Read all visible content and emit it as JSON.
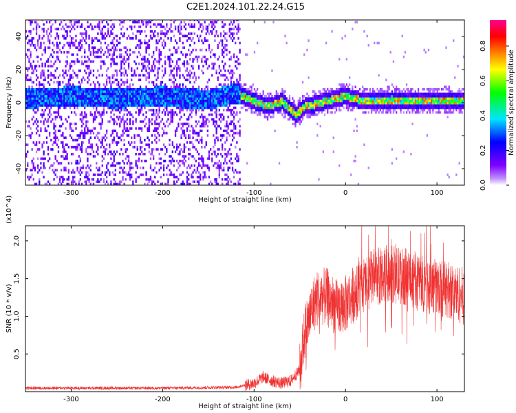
{
  "title": "C2E1.2024.101.22.24.G15",
  "chart_data": [
    {
      "type": "heatmap",
      "xlabel": "Height of straight line (km)",
      "ylabel": "Frequency (Hz)",
      "xlim": [
        -350,
        130
      ],
      "ylim": [
        -50,
        50
      ],
      "xticks": [
        -300,
        -200,
        -100,
        0,
        100
      ],
      "yticks": [
        -40,
        -20,
        0,
        20,
        40
      ],
      "colorbar": {
        "label": "Normalized spectral amplitude",
        "range": [
          0.0,
          0.95
        ],
        "ticks": [
          0.0,
          0.2,
          0.4,
          0.6,
          0.8
        ],
        "colors": [
          "#ffffff",
          "#8000ff",
          "#0000ff",
          "#00e5ff",
          "#00ff00",
          "#ffff00",
          "#ff8000",
          "#ff0000",
          "#ff0090"
        ]
      },
      "center_track": {
        "x": [
          -345,
          -300,
          -250,
          -200,
          -150,
          -120,
          -100,
          -85,
          -70,
          -55,
          -45,
          -30,
          -10,
          0,
          20,
          50,
          80,
          110,
          130
        ],
        "y": [
          2,
          3,
          2,
          3,
          1,
          5,
          0,
          -3,
          0,
          -8,
          -3,
          -1,
          2,
          3,
          0,
          1,
          0,
          1,
          0
        ]
      },
      "color_scale": "rainbow (white→purple→blue→cyan→green→yellow→red→magenta)"
    },
    {
      "type": "line",
      "xlabel": "Height of straight line (km)",
      "ylabel": "SNR (10 * v/v)",
      "y_multiplier": "(x10^4)",
      "xlim": [
        -350,
        130
      ],
      "ylim": [
        0,
        2.2
      ],
      "xticks": [
        -300,
        -200,
        -100,
        0,
        100
      ],
      "yticks": [
        0.5,
        1.0,
        1.5,
        2.0
      ],
      "series": [
        {
          "color": "#f03232",
          "envelope": {
            "x": [
              -350,
              -300,
              -200,
              -120,
              -100,
              -90,
              -80,
              -70,
              -60,
              -50,
              -45,
              -40,
              -35,
              -30,
              -20,
              -10,
              0,
              10,
              20,
              30,
              50,
              70,
              90,
              110,
              130
            ],
            "y": [
              0.05,
              0.05,
              0.05,
              0.06,
              0.12,
              0.2,
              0.15,
              0.12,
              0.15,
              0.3,
              0.8,
              1.0,
              1.2,
              1.3,
              1.3,
              1.15,
              1.2,
              1.35,
              1.45,
              1.55,
              1.6,
              1.55,
              1.45,
              1.4,
              1.3
            ]
          }
        }
      ]
    }
  ]
}
